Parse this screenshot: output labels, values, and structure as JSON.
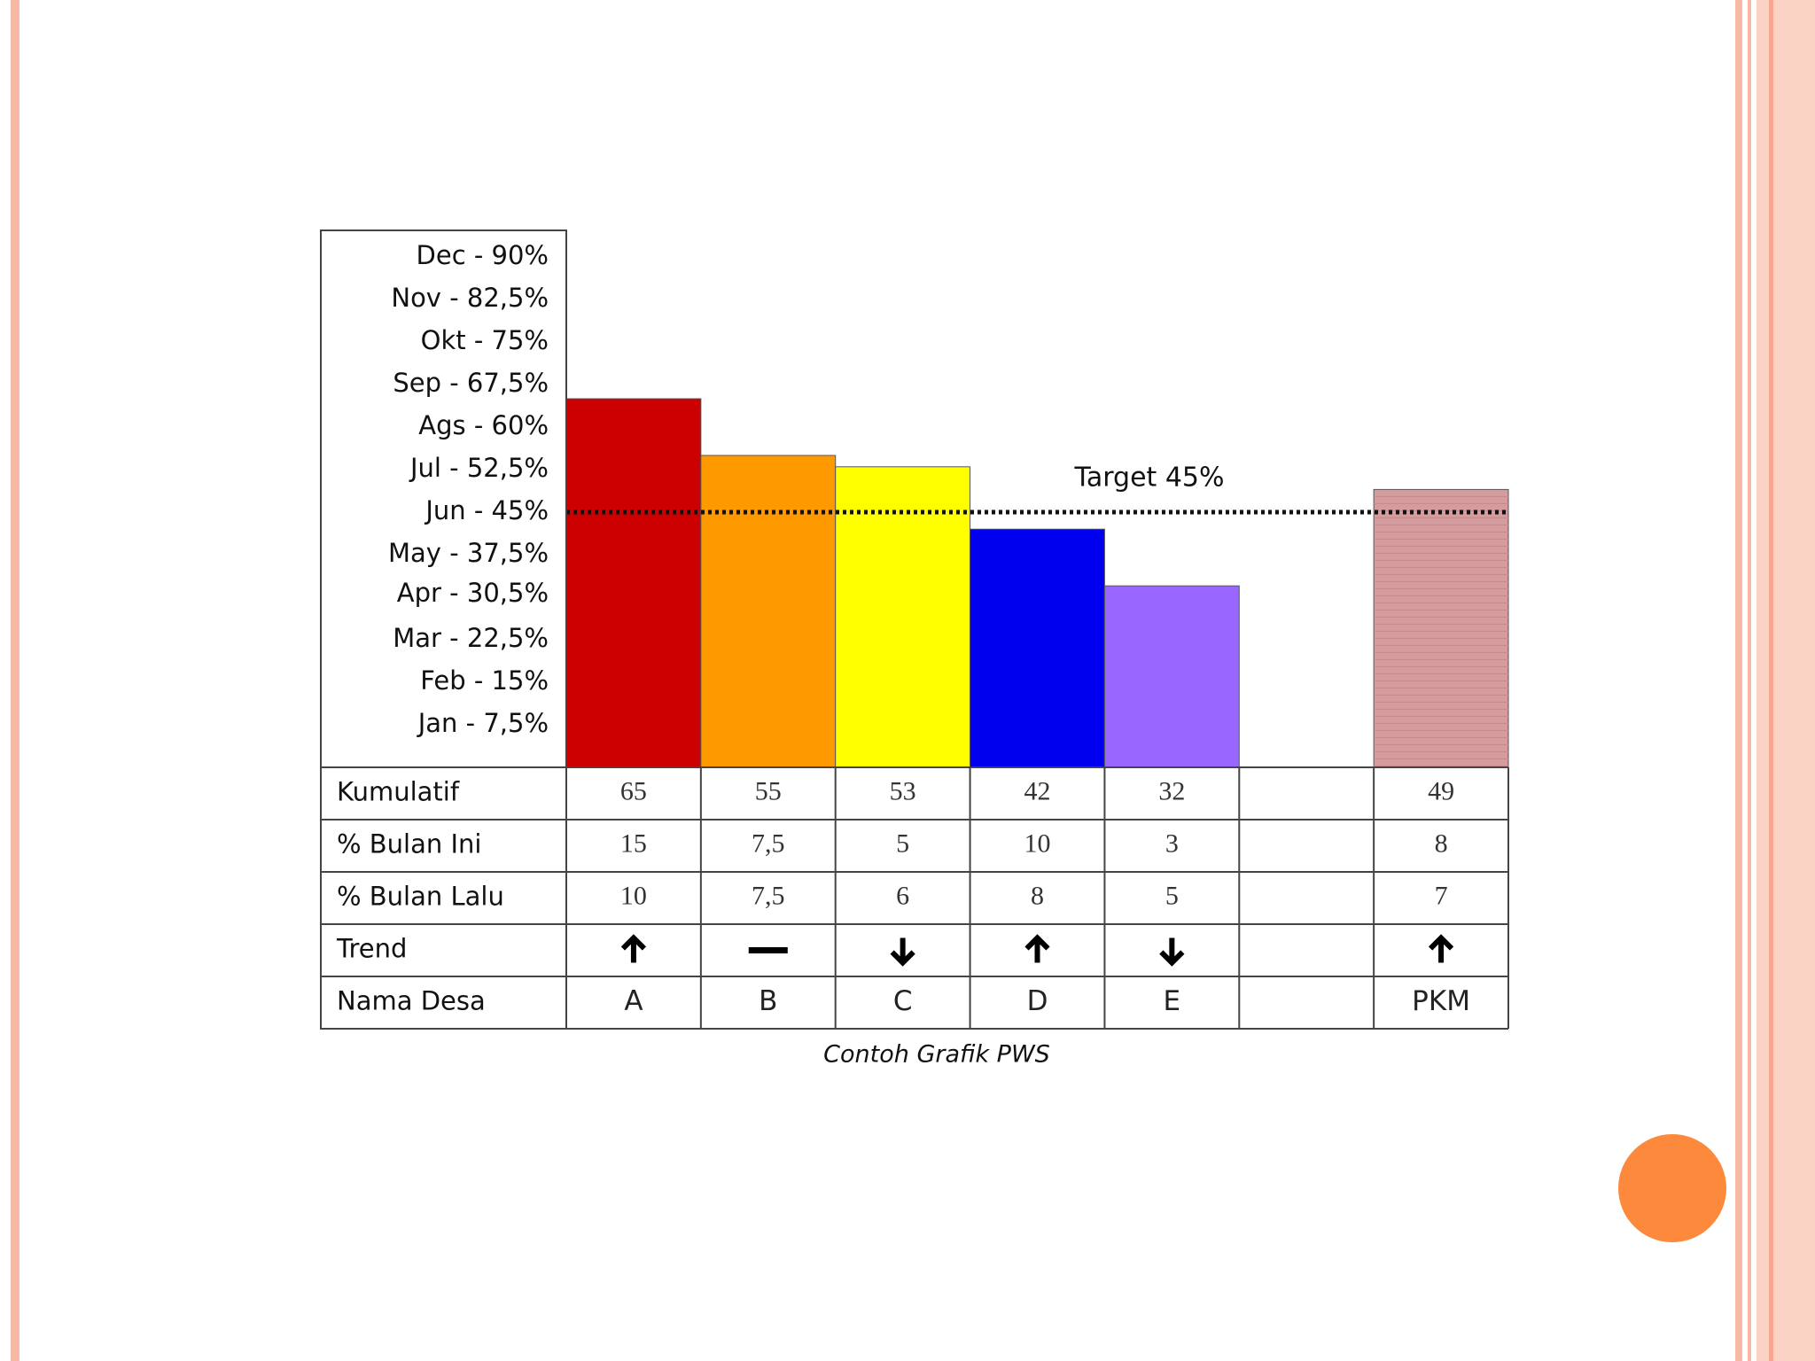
{
  "chart_data": {
    "type": "bar",
    "categories": [
      "A",
      "B",
      "C",
      "D",
      "E",
      null,
      "PKM"
    ],
    "values": [
      65,
      55,
      53,
      42,
      32,
      null,
      49
    ],
    "colors": [
      "#cc0000",
      "#ff9900",
      "#ffff00",
      "#0000ee",
      "#9966ff",
      null,
      "#d49c9c"
    ],
    "ylim": [
      0,
      95
    ],
    "yticks": [
      {
        "value": 7.5,
        "label": "Jan  -  7,5%"
      },
      {
        "value": 15,
        "label": "Feb  -  15%"
      },
      {
        "value": 22.5,
        "label": "Mar - 22,5%"
      },
      {
        "value": 30.5,
        "label": "Apr - 30,5%"
      },
      {
        "value": 37.5,
        "label": "May - 37,5%"
      },
      {
        "value": 45,
        "label": "Jun  -  45%"
      },
      {
        "value": 52.5,
        "label": "Jul  - 52,5%"
      },
      {
        "value": 60,
        "label": "Ags  -  60%"
      },
      {
        "value": 67.5,
        "label": "Sep - 67,5%"
      },
      {
        "value": 75,
        "label": "Okt  -  75%"
      },
      {
        "value": 82.5,
        "label": "Nov - 82,5%"
      },
      {
        "value": 90,
        "label": "Dec  -  90%"
      }
    ],
    "grid": false,
    "target": {
      "value": 45,
      "label": "Target 45%"
    },
    "table": {
      "row_labels": [
        "Kumulatif",
        "% Bulan Ini",
        "% Bulan Lalu",
        "Trend",
        "Nama Desa"
      ],
      "this_month": [
        "15",
        "7,5",
        "5",
        "10",
        "3",
        null,
        "8"
      ],
      "last_month": [
        "10",
        "7,5",
        "6",
        "8",
        "5",
        null,
        "7"
      ],
      "trend": [
        "up",
        "flat",
        "down",
        "up",
        "down",
        null,
        "up"
      ]
    },
    "caption": "Contoh Grafik PWS"
  }
}
